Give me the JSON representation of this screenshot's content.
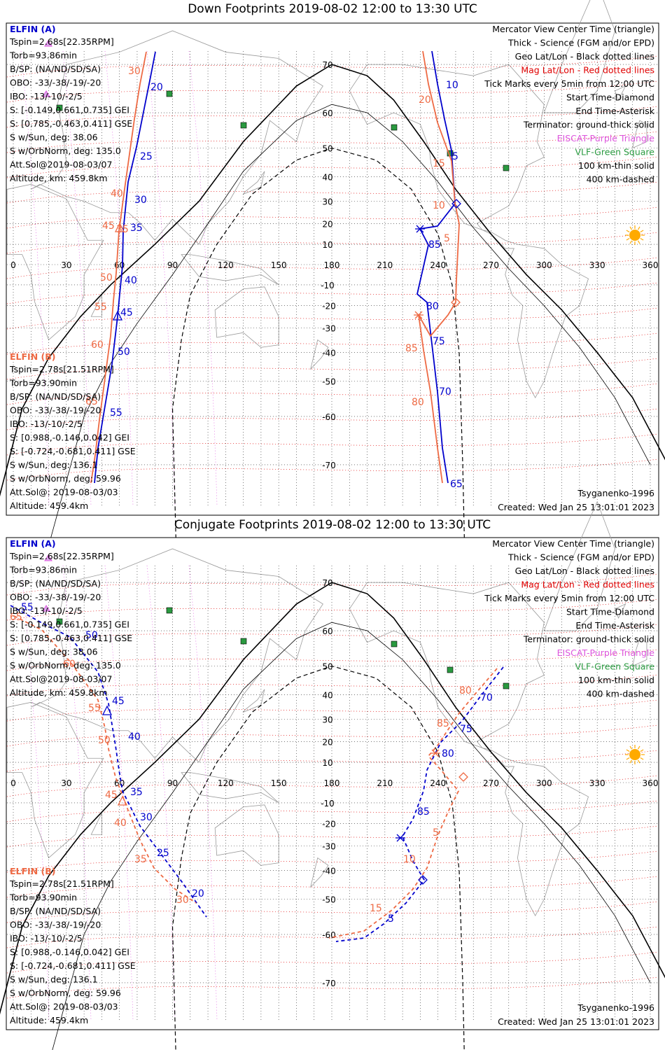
{
  "colors": {
    "elfin_a": "#0000cc",
    "elfin_b": "#ee6a44",
    "mag_grid": "#e00000",
    "tdim": "#dd55dd",
    "vlf": "#2a9a40",
    "terminator": "#000000",
    "land": "#9a9a9a",
    "geo_grid": "#222222",
    "sun": "#ffaa00"
  },
  "common": {
    "lon_ticks": [
      "0",
      "30",
      "60",
      "90",
      "120",
      "150",
      "180",
      "210",
      "240",
      "270",
      "300",
      "330",
      "360"
    ],
    "lat_ticks": [
      "70",
      "60",
      "50",
      "40",
      "30",
      "20",
      "10",
      "0",
      "-10",
      "-20",
      "-30",
      "-40",
      "-50",
      "-60",
      "-70"
    ],
    "legend": [
      {
        "text": "Mercator View Center Time (triangle)",
        "color": "#000000"
      },
      {
        "text": "Thick - Science (FGM and/or EPD)",
        "color": "#000000"
      },
      {
        "text": "Geo Lat/Lon - Black dotted lines",
        "color": "#000000"
      },
      {
        "text": "Mag Lat/Lon - Red dotted lines",
        "color": "#e00000"
      },
      {
        "text": "Tick Marks every 5min from 12:00 UTC",
        "color": "#000000"
      },
      {
        "text": "Start Time-Diamond",
        "color": "#000000"
      },
      {
        "text": "End Time-Asterisk",
        "color": "#000000"
      },
      {
        "text": "Terminator: ground-thick solid",
        "color": "#000000"
      },
      {
        "text": "EISCAT-Purple Triangle",
        "color": "#dd55dd"
      },
      {
        "text": "VLF-Green Square",
        "color": "#2a9a40"
      },
      {
        "text": "100 km-thin solid",
        "color": "#000000"
      },
      {
        "text": "400 km-dashed",
        "color": "#000000"
      }
    ],
    "elfin_a_info": {
      "heading": "ELFIN (A)",
      "lines": [
        "Tspin=2.68s[22.35RPM]",
        "Torb=93.86min",
        "B/SP: (NA/ND/SD/SA)",
        "OBO: -33/-38/-19/-20",
        "IBO: -13/-10/-2/5",
        "S: [-0.149,0.661,0.735] GEI",
        "S: [0.785,-0.463,0.411] GSE",
        "S w/Sun, deg: 38.06",
        "S w/OrbNorm, deg: 135.0",
        "Att.Sol@2019-08-03/07",
        "Altitude, km: 459.8km"
      ]
    },
    "elfin_b_info": {
      "heading": "ELFIN (B)",
      "lines": [
        "Tspin=2.78s[21.51RPM]",
        "Torb=93.90min",
        "B/SP: (NA/ND/SD/SA)",
        "OBO: -33/-38/-19/-20",
        "IBO: -13/-10/-2/5",
        "S: [0.988,-0.146,0.042] GEI",
        "S: [-0.724,-0.681,0.411] GSE",
        "S w/Sun, deg: 136.1",
        "S w/OrbNorm, deg: 59.96",
        "Att.Sol@: 2019-08-03/03",
        "Altitude: 459.4km"
      ]
    },
    "model": "Tsyganenko-1996",
    "created": "Created: Wed Jan 25 13:01:01 2023"
  },
  "panels": [
    {
      "title": "Down Footprints 2019-08-02 12:00 to 13:30 UTC",
      "track_a_labels": [
        "20",
        "25",
        "30",
        "35",
        "40",
        "45",
        "50",
        "55",
        "10",
        "5",
        "85",
        "80",
        "75",
        "70",
        "65"
      ],
      "track_b_labels": [
        "30",
        "35",
        "40",
        "45",
        "50",
        "55",
        "60",
        "65",
        "20",
        "15",
        "10",
        "5",
        "85",
        "80"
      ]
    },
    {
      "title": "Conjugate Footprints 2019-08-02 12:00 to 13:30 UTC",
      "track_a_labels": [
        "55",
        "50",
        "45",
        "40",
        "35",
        "30",
        "25",
        "20",
        "5",
        "85",
        "80",
        "75",
        "70"
      ],
      "track_b_labels": [
        "65",
        "60",
        "55",
        "50",
        "45",
        "40",
        "35",
        "30",
        "80",
        "85",
        "10",
        "5",
        "15"
      ]
    }
  ]
}
